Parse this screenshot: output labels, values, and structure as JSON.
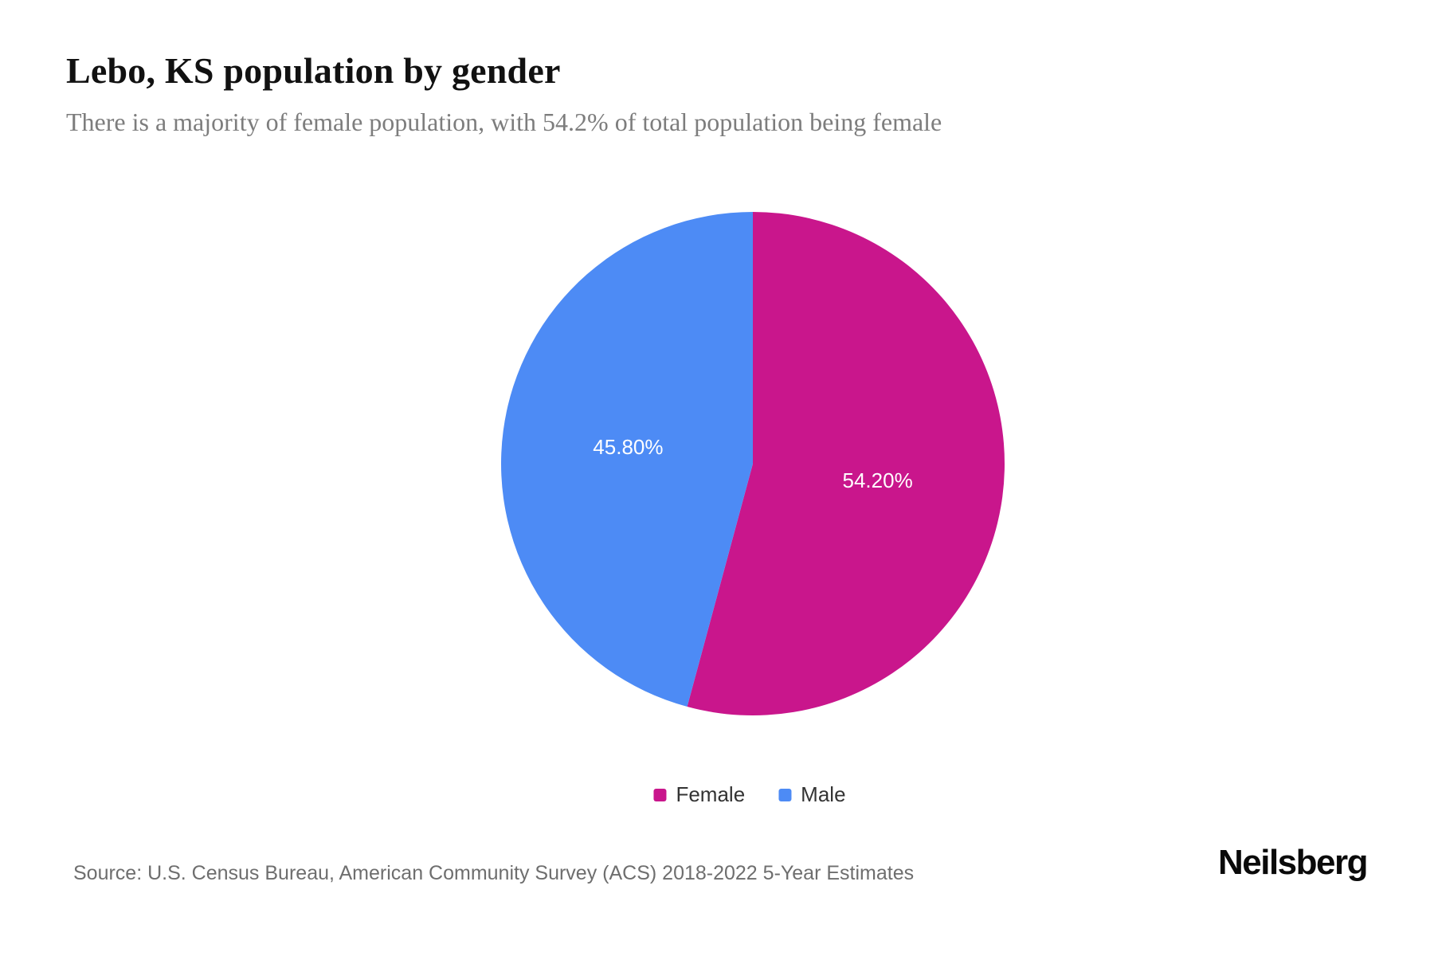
{
  "header": {
    "title": "Lebo, KS population by gender",
    "subtitle": "There is a majority of female population, with 54.2% of total population being female"
  },
  "chart_data": {
    "type": "pie",
    "title": "Lebo, KS population by gender",
    "start_angle_deg": 0,
    "direction": "clockwise",
    "label_color": "#ffffff",
    "legend_position": "bottom",
    "slices": [
      {
        "label": "Female",
        "value": 54.2,
        "display": "54.20%",
        "color": "#c9168c"
      },
      {
        "label": "Male",
        "value": 45.8,
        "display": "45.80%",
        "color": "#4d8bf5"
      }
    ]
  },
  "legend": {
    "items": [
      {
        "label": "Female"
      },
      {
        "label": "Male"
      }
    ]
  },
  "footer": {
    "source": "Source: U.S. Census Bureau, American Community Survey (ACS) 2018-2022 5-Year Estimates",
    "brand": "Neilsberg"
  }
}
